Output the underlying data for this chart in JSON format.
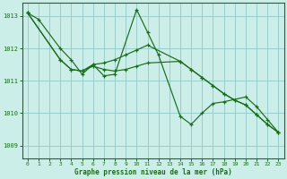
{
  "xlabel": "Graphe pression niveau de la mer (hPa)",
  "bg_color": "#cceee8",
  "grid_color": "#99cccc",
  "line_color": "#1a6b1a",
  "marker_color": "#1a6b1a",
  "axis_color": "#1a6b1a",
  "text_color": "#1a6b1a",
  "xlim": [
    -0.5,
    23.5
  ],
  "ylim": [
    1008.6,
    1013.4
  ],
  "yticks": [
    1009,
    1010,
    1011,
    1012,
    1013
  ],
  "xticks": [
    0,
    1,
    2,
    3,
    4,
    5,
    6,
    7,
    8,
    9,
    10,
    11,
    12,
    13,
    14,
    15,
    16,
    17,
    18,
    19,
    20,
    21,
    22,
    23
  ],
  "series": [
    {
      "x": [
        0,
        1,
        3,
        4,
        5,
        6,
        7,
        8,
        10,
        11,
        12,
        14,
        15,
        16,
        17,
        18,
        20,
        21,
        22,
        23
      ],
      "y": [
        1013.1,
        1012.9,
        1012.0,
        1011.65,
        1011.2,
        1011.5,
        1011.15,
        1011.2,
        1013.2,
        1012.5,
        1011.8,
        1009.9,
        1009.65,
        1010.0,
        1010.3,
        1010.35,
        1010.5,
        1010.2,
        1009.8,
        1009.4
      ]
    },
    {
      "x": [
        0,
        3,
        4,
        5,
        6,
        7,
        8,
        9,
        10,
        11,
        14,
        15,
        16,
        17,
        18,
        19,
        20,
        21,
        22,
        23
      ],
      "y": [
        1013.1,
        1011.65,
        1011.35,
        1011.3,
        1011.45,
        1011.35,
        1011.3,
        1011.35,
        1011.45,
        1011.55,
        1011.6,
        1011.35,
        1011.1,
        1010.85,
        1010.6,
        1010.4,
        1010.25,
        1009.95,
        1009.65,
        1009.4
      ]
    },
    {
      "x": [
        0,
        3,
        4,
        5,
        6,
        7,
        8,
        9,
        10,
        11,
        14,
        15,
        16,
        17,
        18,
        19,
        20,
        21,
        22,
        23
      ],
      "y": [
        1013.1,
        1011.65,
        1011.35,
        1011.3,
        1011.5,
        1011.55,
        1011.65,
        1011.8,
        1011.95,
        1012.1,
        1011.6,
        1011.35,
        1011.1,
        1010.85,
        1010.6,
        1010.4,
        1010.25,
        1009.95,
        1009.65,
        1009.4
      ]
    }
  ]
}
